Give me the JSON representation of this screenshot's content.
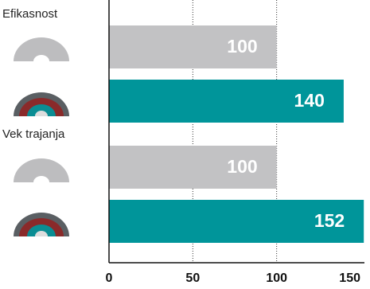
{
  "chart_data": {
    "type": "bar",
    "orientation": "horizontal",
    "categories": [
      "Efikasnost",
      "Vek trajanja"
    ],
    "series": [
      {
        "color": "#c2c2c4",
        "values": [
          100,
          100
        ]
      },
      {
        "color": "#00959a",
        "values": [
          140,
          152
        ]
      }
    ],
    "xlim": [
      0,
      150
    ],
    "xticks": [
      0,
      50,
      100,
      150
    ],
    "grid": true
  }
}
